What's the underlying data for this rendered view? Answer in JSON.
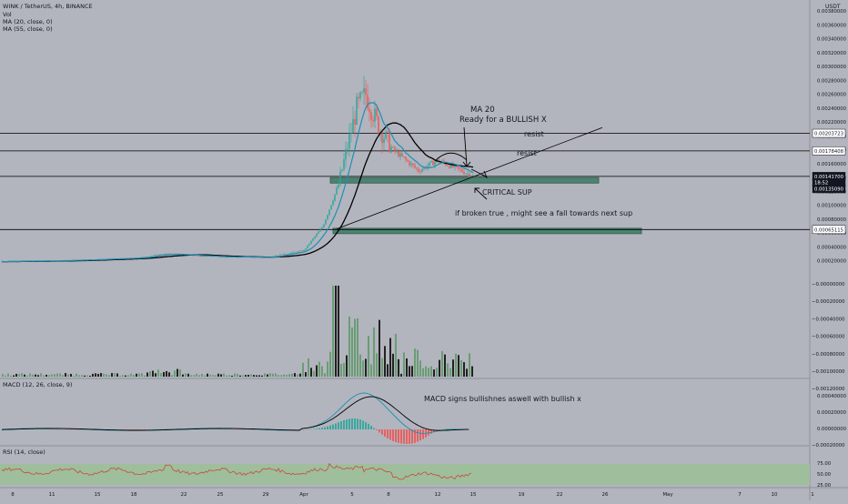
{
  "header": {
    "symbol": "WINK / TetherUS, 4h, BINANCE",
    "indicators": [
      "Vol",
      "MA (20, close, 0)",
      "MA (55, close, 0)"
    ]
  },
  "axis": {
    "currency": "USDT",
    "price_ticks": [
      "0.00380000",
      "0.00360000",
      "0.00340000",
      "0.00320000",
      "0.00300000",
      "0.00280000",
      "0.00260000",
      "0.00240000",
      "0.00220000",
      "0.00200000",
      "0.00180000",
      "0.00160000",
      "0.00140000",
      "0.00120000",
      "0.00100000",
      "0.00080000",
      "0.00060000",
      "0.00040000",
      "0.00020000"
    ],
    "vol_ticks": [
      "−0.00000000",
      "−0.00020000",
      "−0.00040000",
      "−0.00060000",
      "−0.00080000",
      "−0.00100000",
      "−0.00120000"
    ],
    "macd_ticks": [
      "0.00040000",
      "0.00020000",
      "0.00000000",
      "−0.00020000"
    ],
    "rsi_ticks": [
      "75.00",
      "50.00",
      "25.00"
    ],
    "price_flags": [
      {
        "label": "0.00203723",
        "value": 0.00203723,
        "style": "white"
      },
      {
        "label": "0.00178408",
        "value": 0.00178408,
        "style": "white"
      },
      {
        "label": "0.00141700",
        "value": 0.001417,
        "style": "black"
      },
      {
        "label": "18:52",
        "value": 0.0013275,
        "style": "black"
      },
      {
        "label": "0.00135090",
        "value": 0.001239,
        "style": "black"
      },
      {
        "label": "0.00065115",
        "value": 0.00065115,
        "style": "white"
      }
    ],
    "time_ticks": [
      "8",
      "11",
      "15",
      "18",
      "22",
      "25",
      "29",
      "Apr",
      "5",
      "8",
      "12",
      "15",
      "19",
      "22",
      "26",
      "May",
      "7",
      "10",
      "1"
    ]
  },
  "panes": {
    "macd_label": "MACD (12, 26, close, 9)",
    "rsi_label": "RSI (14, close)"
  },
  "annotations": {
    "resist_1": "resist",
    "resist_2": "resist",
    "ma_note_1": "MA 20",
    "ma_note_2": "Ready for a BULLISH X",
    "critical": "CRITICAL SUP",
    "broken": "if broken true , might see a fall towards next sup",
    "macd_note": "MACD signs bullishnes aswell with bullish x"
  },
  "colors": {
    "background": "#b2b5be",
    "up": "#26a69a",
    "down": "#ef5350",
    "volume_up": "#6b9d74",
    "volume_down": "#222222",
    "ma20": "#1e8fb3",
    "ma55": "#000000",
    "support_zone": "#4e8270",
    "rsi_band": "#9fbf9c",
    "rsi_line": "#c74a3a"
  },
  "chart_data": {
    "type": "candlestick",
    "title": "WINK / TetherUS, 4h, BINANCE",
    "y_unit": "USDT",
    "ylim": [
      0.0,
      0.0039
    ],
    "horizontal_levels": [
      0.00203723,
      0.00178408,
      0.001417,
      0.00065115
    ],
    "support_zones": [
      {
        "label": "CRITICAL SUP",
        "low": 0.00132,
        "high": 0.0014
      },
      {
        "label": "",
        "low": 0.0006,
        "high": 0.00067
      }
    ],
    "trendline": {
      "from": {
        "date": "Apr 3",
        "price": 0.00066
      },
      "to": {
        "date": "Apr 26",
        "price": 0.00212
      }
    },
    "price_keypoints": [
      {
        "x": "Mar 5",
        "price": 0.0002
      },
      {
        "x": "Mar 15",
        "price": 0.00022
      },
      {
        "x": "Mar 20",
        "price": 0.00024
      },
      {
        "x": "Mar 22",
        "price": 0.0003
      },
      {
        "x": "Mar 25",
        "price": 0.00026
      },
      {
        "x": "Mar 29",
        "price": 0.00025
      },
      {
        "x": "Apr 1",
        "price": 0.00035
      },
      {
        "x": "Apr 3",
        "price": 0.0007
      },
      {
        "x": "Apr 4",
        "price": 0.0013
      },
      {
        "x": "Apr 5",
        "price": 0.0024
      },
      {
        "x": "Apr 6",
        "price": 0.0026
      },
      {
        "x": "Apr 7",
        "price": 0.0021
      },
      {
        "x": "Apr 8",
        "price": 0.0018
      },
      {
        "x": "Apr 10",
        "price": 0.0015
      },
      {
        "x": "Apr 12",
        "price": 0.00165
      },
      {
        "x": "Apr 14",
        "price": 0.00142
      }
    ]
  }
}
